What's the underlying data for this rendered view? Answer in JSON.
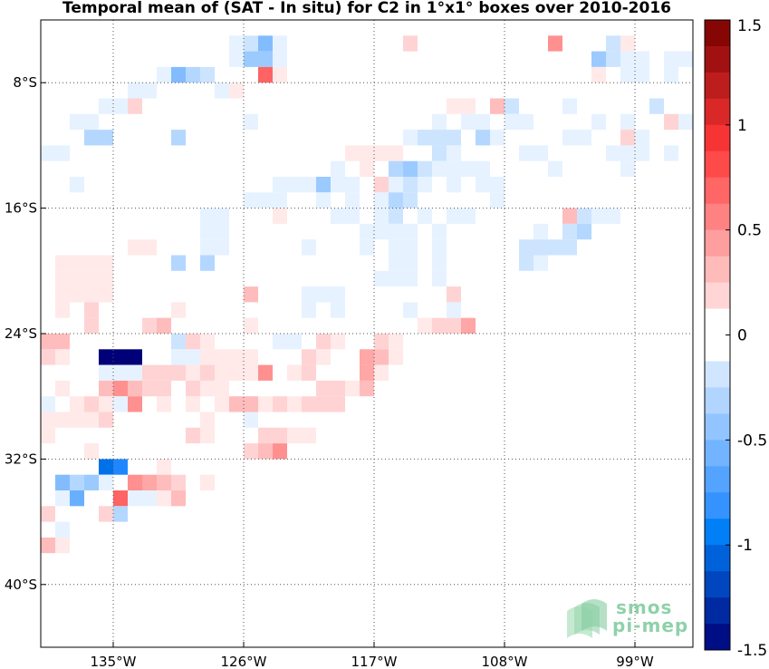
{
  "title": "Temporal mean of (SAT - In situ) for C2 in 1°x1° boxes over 2010-2016",
  "map": {
    "lon_range": [
      -140,
      -95
    ],
    "lat_range": [
      -44,
      -4
    ],
    "lon_ticks": [
      {
        "value": -135,
        "label": "135°W"
      },
      {
        "value": -126,
        "label": "126°W"
      },
      {
        "value": -117,
        "label": "117°W"
      },
      {
        "value": -108,
        "label": "108°W"
      },
      {
        "value": -99,
        "label": "99°W"
      }
    ],
    "lat_ticks": [
      {
        "value": -8,
        "label": "8°S"
      },
      {
        "value": -16,
        "label": "16°S"
      },
      {
        "value": -24,
        "label": "24°S"
      },
      {
        "value": -32,
        "label": "32°S"
      },
      {
        "value": -40,
        "label": "40°S"
      }
    ],
    "grid": "dotted"
  },
  "colorbar": {
    "min": -1.5,
    "max": 1.5,
    "ticks": [
      {
        "value": 1.5,
        "label": "1.5"
      },
      {
        "value": 1,
        "label": "1"
      },
      {
        "value": 0.5,
        "label": "0.5"
      },
      {
        "value": 0,
        "label": "0"
      },
      {
        "value": -0.5,
        "label": "-0.5"
      },
      {
        "value": -1,
        "label": "-1"
      },
      {
        "value": -1.5,
        "label": "-1.5"
      }
    ],
    "palette": "blue-white-red"
  },
  "logo": {
    "line1": "smos",
    "line2": "pi-mep"
  },
  "chart_data": {
    "type": "heatmap",
    "cell_size_deg": 1,
    "cells_note": "each cell: [west lon, north lat, value]",
    "cells": [
      [
        -127,
        -5,
        -0.1
      ],
      [
        -126,
        -5,
        -0.2
      ],
      [
        -125,
        -5,
        -0.5
      ],
      [
        -124,
        -5,
        -0.1
      ],
      [
        -122,
        -5,
        0
      ],
      [
        -115,
        -5,
        0.2
      ],
      [
        -105,
        -5,
        0.5
      ],
      [
        -101,
        -5,
        -0.2
      ],
      [
        -100,
        -5,
        0.1
      ],
      [
        -127,
        -6,
        -0.1
      ],
      [
        -126,
        -6,
        -0.4
      ],
      [
        -125,
        -6,
        -0.4
      ],
      [
        -124,
        -6,
        -0.1
      ],
      [
        -102,
        -6,
        -0.4
      ],
      [
        -101,
        -6,
        -0.2
      ],
      [
        -100,
        -6,
        -0.1
      ],
      [
        -99,
        -6,
        -0.1
      ],
      [
        -97,
        -6,
        -0.1
      ],
      [
        -96,
        -6,
        -0.1
      ],
      [
        -132,
        -7,
        -0.1
      ],
      [
        -131,
        -7,
        -0.5
      ],
      [
        -130,
        -7,
        -0.3
      ],
      [
        -129,
        -7,
        -0.2
      ],
      [
        -125,
        -7,
        0.7
      ],
      [
        -124,
        -7,
        0.1
      ],
      [
        -102,
        -7,
        0.1
      ],
      [
        -100,
        -7,
        -0.1
      ],
      [
        -99,
        -7,
        -0.1
      ],
      [
        -97,
        -7,
        -0.1
      ],
      [
        -134,
        -8,
        -0.1
      ],
      [
        -133,
        -8,
        -0.1
      ],
      [
        -128,
        -8,
        -0.1
      ],
      [
        -127,
        -8,
        0.1
      ],
      [
        -136,
        -9,
        -0.1
      ],
      [
        -135,
        -9,
        -0.1
      ],
      [
        -134,
        -9,
        0.2
      ],
      [
        -112,
        -9,
        0.1
      ],
      [
        -111,
        -9,
        0.1
      ],
      [
        -109,
        -9,
        0.3
      ],
      [
        -108,
        -9,
        -0.2
      ],
      [
        -104,
        -9,
        -0.1
      ],
      [
        -98,
        -9,
        -0.2
      ],
      [
        -138,
        -10,
        -0.1
      ],
      [
        -137,
        -10,
        -0.1
      ],
      [
        -126,
        -10,
        -0.1
      ],
      [
        -113,
        -10,
        -0.1
      ],
      [
        -111,
        -10,
        -0.1
      ],
      [
        -110,
        -10,
        -0.1
      ],
      [
        -108,
        -10,
        -0.1
      ],
      [
        -107,
        -10,
        -0.1
      ],
      [
        -102,
        -10,
        -0.1
      ],
      [
        -100,
        -10,
        -0.1
      ],
      [
        -97,
        -10,
        0.2
      ],
      [
        -96,
        -10,
        -0.1
      ],
      [
        -137,
        -11,
        -0.3
      ],
      [
        -136,
        -11,
        -0.3
      ],
      [
        -131,
        -11,
        -0.3
      ],
      [
        -115,
        -11,
        -0.1
      ],
      [
        -114,
        -11,
        -0.2
      ],
      [
        -113,
        -11,
        -0.2
      ],
      [
        -112,
        -11,
        -0.2
      ],
      [
        -110,
        -11,
        -0.3
      ],
      [
        -109,
        -11,
        -0.1
      ],
      [
        -104,
        -11,
        -0.1
      ],
      [
        -103,
        -11,
        -0.1
      ],
      [
        -100,
        -11,
        0.2
      ],
      [
        -99,
        -11,
        -0.1
      ],
      [
        -140,
        -12,
        -0.1
      ],
      [
        -139,
        -12,
        -0.1
      ],
      [
        -119,
        -12,
        0.1
      ],
      [
        -118,
        -12,
        0.1
      ],
      [
        -117,
        -12,
        0.1
      ],
      [
        -116,
        -12,
        0.1
      ],
      [
        -113,
        -12,
        -0.2
      ],
      [
        -112,
        -12,
        -0.1
      ],
      [
        -107,
        -12,
        -0.1
      ],
      [
        -106,
        -12,
        -0.1
      ],
      [
        -101,
        -12,
        -0.1
      ],
      [
        -100,
        -12,
        -0.1
      ],
      [
        -99,
        -12,
        -0.1
      ],
      [
        -97,
        -12,
        -0.1
      ],
      [
        -120,
        -13,
        -0.1
      ],
      [
        -118,
        -13,
        0.1
      ],
      [
        -116,
        -13,
        -0.3
      ],
      [
        -115,
        -13,
        -0.4
      ],
      [
        -114,
        -13,
        -0.2
      ],
      [
        -113,
        -13,
        -0.1
      ],
      [
        -112,
        -13,
        -0.1
      ],
      [
        -111,
        -13,
        -0.1
      ],
      [
        -110,
        -13,
        -0.1
      ],
      [
        -105,
        -13,
        -0.1
      ],
      [
        -100,
        -13,
        -0.1
      ],
      [
        -138,
        -14,
        -0.1
      ],
      [
        -124,
        -14,
        -0.1
      ],
      [
        -123,
        -14,
        -0.1
      ],
      [
        -122,
        -14,
        -0.1
      ],
      [
        -121,
        -14,
        -0.4
      ],
      [
        -120,
        -14,
        -0.1
      ],
      [
        -119,
        -14,
        -0.1
      ],
      [
        -117,
        -14,
        0.2
      ],
      [
        -116,
        -14,
        -0.1
      ],
      [
        -115,
        -14,
        -0.2
      ],
      [
        -114,
        -14,
        -0.1
      ],
      [
        -112,
        -14,
        -0.1
      ],
      [
        -110,
        -14,
        -0.1
      ],
      [
        -109,
        -14,
        -0.1
      ],
      [
        -126,
        -15,
        -0.1
      ],
      [
        -125,
        -15,
        -0.1
      ],
      [
        -124,
        -15,
        -0.1
      ],
      [
        -121,
        -15,
        -0.1
      ],
      [
        -119,
        -15,
        -0.1
      ],
      [
        -117,
        -15,
        -0.1
      ],
      [
        -116,
        -15,
        -0.3
      ],
      [
        -115,
        -15,
        -0.2
      ],
      [
        -109,
        -15,
        -0.1
      ],
      [
        -129,
        -16,
        -0.1
      ],
      [
        -128,
        -16,
        -0.1
      ],
      [
        -124,
        -16,
        0.1
      ],
      [
        -120,
        -16,
        -0.1
      ],
      [
        -119,
        -16,
        -0.1
      ],
      [
        -117,
        -16,
        -0.1
      ],
      [
        -116,
        -16,
        -0.2
      ],
      [
        -114,
        -16,
        -0.1
      ],
      [
        -112,
        -16,
        -0.1
      ],
      [
        -111,
        -16,
        -0.1
      ],
      [
        -104,
        -16,
        0.3
      ],
      [
        -103,
        -16,
        -0.2
      ],
      [
        -102,
        -16,
        -0.1
      ],
      [
        -101,
        -16,
        -0.1
      ],
      [
        -129,
        -17,
        -0.1
      ],
      [
        -128,
        -17,
        -0.1
      ],
      [
        -118,
        -17,
        -0.1
      ],
      [
        -117,
        -17,
        -0.1
      ],
      [
        -116,
        -17,
        -0.1
      ],
      [
        -115,
        -17,
        -0.1
      ],
      [
        -113,
        -17,
        -0.1
      ],
      [
        -106,
        -17,
        -0.1
      ],
      [
        -104,
        -17,
        -0.2
      ],
      [
        -103,
        -17,
        -0.3
      ],
      [
        -134,
        -18,
        0.1
      ],
      [
        -133,
        -18,
        0.1
      ],
      [
        -129,
        -18,
        -0.1
      ],
      [
        -128,
        -18,
        -0.1
      ],
      [
        -122,
        -18,
        -0.1
      ],
      [
        -118,
        -18,
        -0.1
      ],
      [
        -116,
        -18,
        -0.1
      ],
      [
        -115,
        -18,
        -0.1
      ],
      [
        -113,
        -18,
        -0.1
      ],
      [
        -107,
        -18,
        -0.2
      ],
      [
        -106,
        -18,
        -0.2
      ],
      [
        -105,
        -18,
        -0.2
      ],
      [
        -104,
        -18,
        -0.2
      ],
      [
        -139,
        -19,
        0.1
      ],
      [
        -138,
        -19,
        0.1
      ],
      [
        -137,
        -19,
        0.1
      ],
      [
        -136,
        -19,
        0.1
      ],
      [
        -131,
        -19,
        -0.3
      ],
      [
        -129,
        -19,
        -0.3
      ],
      [
        -116,
        -19,
        -0.1
      ],
      [
        -115,
        -19,
        -0.1
      ],
      [
        -113,
        -19,
        -0.1
      ],
      [
        -107,
        -19,
        -0.2
      ],
      [
        -106,
        -19,
        -0.1
      ],
      [
        -139,
        -20,
        0.1
      ],
      [
        -138,
        -20,
        0.1
      ],
      [
        -137,
        -20,
        0.1
      ],
      [
        -136,
        -20,
        0.1
      ],
      [
        -117,
        -20,
        -0.1
      ],
      [
        -116,
        -20,
        -0.1
      ],
      [
        -115,
        -20,
        -0.1
      ],
      [
        -113,
        -20,
        -0.1
      ],
      [
        -139,
        -21,
        0.1
      ],
      [
        -138,
        -21,
        0.1
      ],
      [
        -137,
        -21,
        0.1
      ],
      [
        -136,
        -21,
        0.1
      ],
      [
        -126,
        -21,
        0.3
      ],
      [
        -122,
        -21,
        -0.1
      ],
      [
        -121,
        -21,
        -0.1
      ],
      [
        -120,
        -21,
        -0.1
      ],
      [
        -112,
        -21,
        0.2
      ],
      [
        -139,
        -22,
        0.1
      ],
      [
        -137,
        -22,
        0.2
      ],
      [
        -131,
        -22,
        0.1
      ],
      [
        -122,
        -22,
        -0.1
      ],
      [
        -120,
        -22,
        -0.1
      ],
      [
        -115,
        -22,
        -0.1
      ],
      [
        -112,
        -22,
        -0.1
      ],
      [
        -137,
        -23,
        0.2
      ],
      [
        -133,
        -23,
        0.2
      ],
      [
        -132,
        -23,
        0.3
      ],
      [
        -126,
        -23,
        0.1
      ],
      [
        -114,
        -23,
        0.1
      ],
      [
        -113,
        -23,
        0.2
      ],
      [
        -112,
        -23,
        0.2
      ],
      [
        -111,
        -23,
        0.4
      ],
      [
        -140,
        -24,
        0.3
      ],
      [
        -139,
        -24,
        0.3
      ],
      [
        -131,
        -24,
        -0.2
      ],
      [
        -130,
        -24,
        0.2
      ],
      [
        -129,
        -24,
        0.1
      ],
      [
        -124,
        -24,
        -0.1
      ],
      [
        -123,
        -24,
        -0.1
      ],
      [
        -121,
        -24,
        0.2
      ],
      [
        -120,
        -24,
        0.1
      ],
      [
        -117,
        -24,
        0.2
      ],
      [
        -116,
        -24,
        0.1
      ],
      [
        -140,
        -25,
        0.2
      ],
      [
        -139,
        -25,
        0.1
      ],
      [
        -136,
        -25,
        -1.5
      ],
      [
        -135,
        -25,
        -1.5
      ],
      [
        -134,
        -25,
        -1.5
      ],
      [
        -131,
        -25,
        -0.1
      ],
      [
        -130,
        -25,
        -0.1
      ],
      [
        -129,
        -25,
        0.1
      ],
      [
        -128,
        -25,
        0.1
      ],
      [
        -127,
        -25,
        0.1
      ],
      [
        -126,
        -25,
        0.1
      ],
      [
        -122,
        -25,
        0.2
      ],
      [
        -121,
        -25,
        0.1
      ],
      [
        -118,
        -25,
        0.4
      ],
      [
        -117,
        -25,
        0.3
      ],
      [
        -116,
        -25,
        0.1
      ],
      [
        -136,
        -26,
        -0.1
      ],
      [
        -135,
        -26,
        -0.1
      ],
      [
        -134,
        -26,
        -0.1
      ],
      [
        -133,
        -26,
        0.2
      ],
      [
        -132,
        -26,
        0.2
      ],
      [
        -131,
        -26,
        0.2
      ],
      [
        -130,
        -26,
        0.1
      ],
      [
        -129,
        -26,
        0.2
      ],
      [
        -128,
        -26,
        0.1
      ],
      [
        -127,
        -26,
        0.1
      ],
      [
        -126,
        -26,
        0.1
      ],
      [
        -125,
        -26,
        0.5
      ],
      [
        -123,
        -26,
        0.1
      ],
      [
        -122,
        -26,
        0.2
      ],
      [
        -118,
        -26,
        0.4
      ],
      [
        -117,
        -26,
        0.1
      ],
      [
        -139,
        -27,
        0.1
      ],
      [
        -136,
        -27,
        0.3
      ],
      [
        -135,
        -27,
        0.5
      ],
      [
        -134,
        -27,
        0.3
      ],
      [
        -133,
        -27,
        0.2
      ],
      [
        -132,
        -27,
        0.2
      ],
      [
        -130,
        -27,
        0.2
      ],
      [
        -129,
        -27,
        0.1
      ],
      [
        -128,
        -27,
        0.1
      ],
      [
        -121,
        -27,
        0.2
      ],
      [
        -120,
        -27,
        0.2
      ],
      [
        -119,
        -27,
        0.1
      ],
      [
        -118,
        -27,
        0.3
      ],
      [
        -140,
        -28,
        -0.1
      ],
      [
        -138,
        -28,
        0.1
      ],
      [
        -137,
        -28,
        0.2
      ],
      [
        -136,
        -28,
        0.1
      ],
      [
        -135,
        -28,
        -0.1
      ],
      [
        -134,
        -28,
        0.5
      ],
      [
        -132,
        -28,
        0.1
      ],
      [
        -130,
        -28,
        0.1
      ],
      [
        -128,
        -28,
        0.1
      ],
      [
        -127,
        -28,
        0.3
      ],
      [
        -126,
        -28,
        0.3
      ],
      [
        -125,
        -28,
        0.1
      ],
      [
        -124,
        -28,
        0.2
      ],
      [
        -123,
        -28,
        0.1
      ],
      [
        -122,
        -28,
        0.2
      ],
      [
        -121,
        -28,
        0.2
      ],
      [
        -120,
        -28,
        0.2
      ],
      [
        -140,
        -29,
        0.1
      ],
      [
        -139,
        -29,
        0.1
      ],
      [
        -138,
        -29,
        0.1
      ],
      [
        -137,
        -29,
        0.1
      ],
      [
        -136,
        -29,
        0.2
      ],
      [
        -129,
        -29,
        0.1
      ],
      [
        -126,
        -29,
        -0.1
      ],
      [
        -140,
        -30,
        0.1
      ],
      [
        -130,
        -30,
        0.2
      ],
      [
        -129,
        -30,
        0.1
      ],
      [
        -125,
        -30,
        0.2
      ],
      [
        -124,
        -30,
        0.2
      ],
      [
        -123,
        -30,
        0.1
      ],
      [
        -122,
        -30,
        0.1
      ],
      [
        -137,
        -31,
        0.1
      ],
      [
        -126,
        -31,
        0.2
      ],
      [
        -125,
        -31,
        0.3
      ],
      [
        -124,
        -31,
        0.5
      ],
      [
        -136,
        -32,
        -1.0
      ],
      [
        -135,
        -32,
        -0.9
      ],
      [
        -132,
        -32,
        0.1
      ],
      [
        -139,
        -33,
        -0.5
      ],
      [
        -138,
        -33,
        -0.3
      ],
      [
        -137,
        -33,
        -0.4
      ],
      [
        -136,
        -33,
        -0.1
      ],
      [
        -134,
        -33,
        0.5
      ],
      [
        -133,
        -33,
        0.4
      ],
      [
        -132,
        -33,
        0.3
      ],
      [
        -131,
        -33,
        0.2
      ],
      [
        -129,
        -33,
        0.1
      ],
      [
        -139,
        -34,
        -0.1
      ],
      [
        -138,
        -34,
        -0.6
      ],
      [
        -135,
        -34,
        0.7
      ],
      [
        -134,
        -34,
        -0.1
      ],
      [
        -133,
        -34,
        -0.1
      ],
      [
        -132,
        -34,
        0.1
      ],
      [
        -131,
        -34,
        0.3
      ],
      [
        -140,
        -35,
        0.2
      ],
      [
        -136,
        -35,
        0.2
      ],
      [
        -135,
        -35,
        -0.3
      ],
      [
        -139,
        -36,
        -0.1
      ],
      [
        -140,
        -37,
        0.3
      ],
      [
        -139,
        -37,
        0.1
      ]
    ]
  }
}
